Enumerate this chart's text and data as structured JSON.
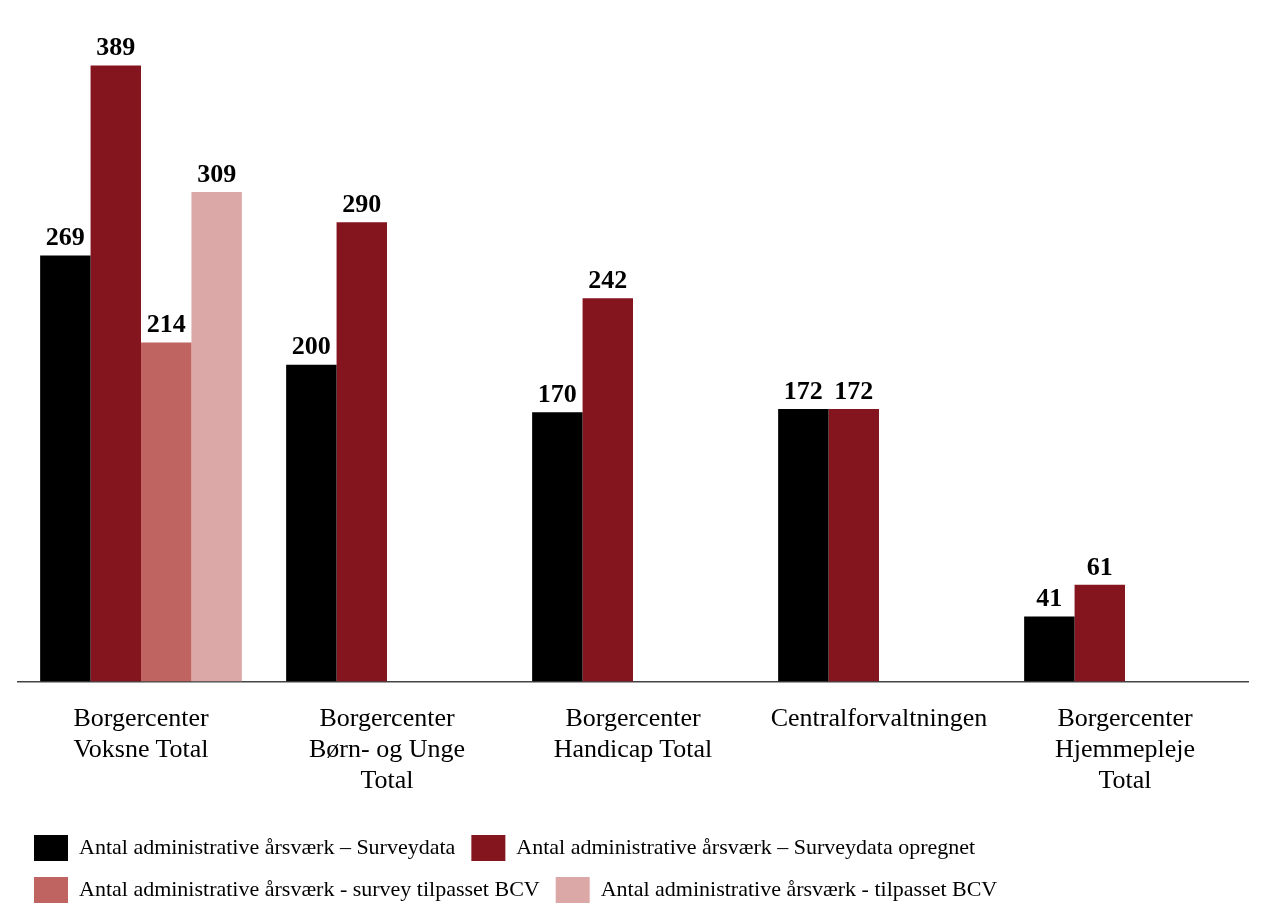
{
  "chart_data": {
    "type": "bar",
    "categories": [
      "Borgercenter Voksne Total",
      "Borgercenter Børn- og Unge Total",
      "Borgercenter Handicap Total",
      "Centralforvaltningen",
      "Borgercenter Hjemmepleje Total"
    ],
    "series": [
      {
        "name": "Antal administrative årsværk – Surveydata",
        "color": "#000000",
        "values": [
          269,
          200,
          170,
          172,
          41
        ]
      },
      {
        "name": "Antal administrative årsværk – Surveydata opregnet",
        "color": "#84151f",
        "values": [
          389,
          290,
          242,
          172,
          61
        ]
      },
      {
        "name": "Antal administrative årsværk - survey tilpasset BCV",
        "color": "#c06462",
        "values": [
          214,
          null,
          null,
          null,
          null
        ]
      },
      {
        "name": "Antal administrative årsværk - tilpasset BCV",
        "color": "#dba8a7",
        "values": [
          309,
          null,
          null,
          null,
          null
        ]
      }
    ],
    "data_labels": true,
    "legend": "bottom",
    "grid": false,
    "tick_labels": "x"
  }
}
